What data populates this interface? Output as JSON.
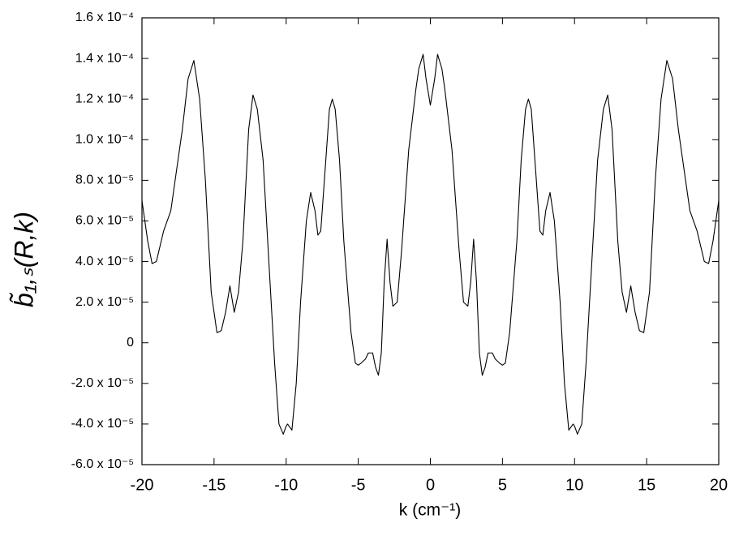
{
  "chart_data": {
    "type": "line",
    "xlabel": "k (cm⁻¹)",
    "ylabel": "b̃₁,ₛ(R,k)",
    "color": "#000000",
    "frame": true,
    "grid": false,
    "x": [
      -20,
      -19.6,
      -19.3,
      -19,
      -18.5,
      -18,
      -17.6,
      -17.2,
      -16.8,
      -16.4,
      -16,
      -15.6,
      -15.2,
      -14.8,
      -14.5,
      -14.2,
      -13.9,
      -13.6,
      -13.3,
      -13,
      -12.6,
      -12.3,
      -12,
      -11.6,
      -11.2,
      -10.8,
      -10.5,
      -10.2,
      -10,
      -9.9,
      -9.6,
      -9.3,
      -9,
      -8.6,
      -8.3,
      -8,
      -7.8,
      -7.6,
      -7.3,
      -7,
      -6.8,
      -6.6,
      -6.3,
      -6,
      -5.5,
      -5.2,
      -5,
      -4.8,
      -4.5,
      -4.3,
      -4,
      -3.8,
      -3.6,
      -3.4,
      -3.2,
      -3,
      -2.8,
      -2.6,
      -2.3,
      -2,
      -1.5,
      -1,
      -0.8,
      -0.5,
      -0.3,
      0,
      0.3,
      0.5,
      0.8,
      1,
      1.5,
      2,
      2.3,
      2.6,
      2.8,
      3,
      3.2,
      3.4,
      3.6,
      3.8,
      4,
      4.3,
      4.5,
      4.8,
      5,
      5.2,
      5.5,
      6,
      6.3,
      6.6,
      6.8,
      7,
      7.3,
      7.6,
      7.8,
      8,
      8.3,
      8.6,
      9,
      9.3,
      9.6,
      9.9,
      10,
      10.2,
      10.5,
      10.8,
      11.2,
      11.6,
      12,
      12.3,
      12.6,
      13,
      13.3,
      13.6,
      13.9,
      14.2,
      14.5,
      14.8,
      15.2,
      15.6,
      16,
      16.4,
      16.8,
      17.2,
      17.6,
      18,
      18.5,
      19,
      19.3,
      19.6,
      20
    ],
    "values": [
      7e-05,
      5e-05,
      3.9e-05,
      4e-05,
      5.5e-05,
      6.5e-05,
      8.5e-05,
      0.000105,
      0.00013,
      0.000139,
      0.00012,
      8e-05,
      2.5e-05,
      5e-06,
      6e-06,
      1.5e-05,
      2.8e-05,
      1.5e-05,
      2.5e-05,
      5e-05,
      0.000105,
      0.000122,
      0.000115,
      9e-05,
      4e-05,
      -1e-05,
      -4e-05,
      -4.5e-05,
      -4.1e-05,
      -4e-05,
      -4.3e-05,
      -2e-05,
      2e-05,
      6e-05,
      7.4e-05,
      6.5e-05,
      5.3e-05,
      5.5e-05,
      8.5e-05,
      0.000115,
      0.00012,
      0.000115,
      9e-05,
      5e-05,
      5e-06,
      -1e-05,
      -1.1e-05,
      -1e-05,
      -8e-06,
      -5e-06,
      -5e-06,
      -1.2e-05,
      -1.6e-05,
      -5e-06,
      3e-05,
      5.1e-05,
      3e-05,
      1.8e-05,
      2e-05,
      4.5e-05,
      9.5e-05,
      0.000125,
      0.000135,
      0.000142,
      0.00013,
      0.000117,
      0.00013,
      0.000142,
      0.000135,
      0.000125,
      9.5e-05,
      4.5e-05,
      2e-05,
      1.8e-05,
      3e-05,
      5.1e-05,
      3e-05,
      -5e-06,
      -1.6e-05,
      -1.2e-05,
      -5e-06,
      -5e-06,
      -8e-06,
      -1e-05,
      -1.1e-05,
      -1e-05,
      5e-06,
      5e-05,
      9e-05,
      0.000115,
      0.00012,
      0.000115,
      8.5e-05,
      5.5e-05,
      5.3e-05,
      6.5e-05,
      7.4e-05,
      6e-05,
      2e-05,
      -2e-05,
      -4.3e-05,
      -4e-05,
      -4.1e-05,
      -4.5e-05,
      -4e-05,
      -1e-05,
      4e-05,
      9e-05,
      0.000115,
      0.000122,
      0.000105,
      5e-05,
      2.5e-05,
      1.5e-05,
      2.8e-05,
      1.5e-05,
      6e-06,
      5e-06,
      2.5e-05,
      8e-05,
      0.00012,
      0.000139,
      0.00013,
      0.000105,
      8.5e-05,
      6.5e-05,
      5.5e-05,
      4e-05,
      3.9e-05,
      5e-05,
      7e-05
    ],
    "xlim": [
      -20,
      20
    ],
    "ylim": [
      -6e-05,
      0.00016
    ],
    "xticks": [
      -20,
      -15,
      -10,
      -5,
      0,
      5,
      10,
      15,
      20
    ],
    "yticks": [
      {
        "value": -6e-05,
        "label": "-6.0 x 10⁻⁵"
      },
      {
        "value": -4e-05,
        "label": "-4.0 x 10⁻⁵"
      },
      {
        "value": -2e-05,
        "label": "-2.0 x 10⁻⁵"
      },
      0,
      {
        "value": 2e-05,
        "label": "2.0 x 10⁻⁵"
      },
      {
        "value": 4e-05,
        "label": "4.0 x 10⁻⁵"
      },
      {
        "value": 6e-05,
        "label": "6.0 x 10⁻⁵"
      },
      {
        "value": 8e-05,
        "label": "8.0 x 10⁻⁵"
      },
      {
        "value": 0.0001,
        "label": "1.0 x 10⁻⁴"
      },
      {
        "value": 0.00012,
        "label": "1.2 x 10⁻⁴"
      },
      {
        "value": 0.00014,
        "label": "1.4 x 10⁻⁴"
      },
      {
        "value": 0.00016,
        "label": "1.6 x 10⁻⁴"
      }
    ]
  }
}
